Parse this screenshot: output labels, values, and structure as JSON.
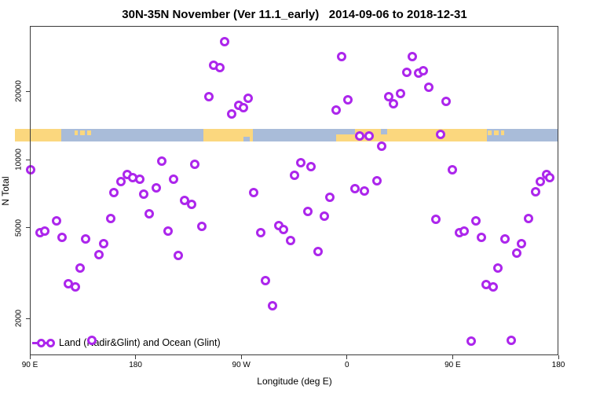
{
  "title": "30N-35N November (Ver 11.1_early)   2014-09-06 to 2018-12-31",
  "colors": {
    "point": "#AC26EC",
    "land": "#FBD77E",
    "ocean": "#A9BCD9",
    "axis": "#3a3a3a"
  },
  "legend": {
    "label": "Land (Nadir&Glint) and Ocean (Glint)",
    "position": "bottom-left"
  },
  "chart_data": {
    "type": "scatter",
    "title": "30N-35N November (Ver 11.1_early)   2014-09-06 to 2018-12-31",
    "xlabel": "Longitude (deg E)",
    "ylabel": "N Total",
    "x_axis": {
      "range_deg_east": [
        90,
        540
      ],
      "ticks": [
        {
          "label": "90 E",
          "lon": 90
        },
        {
          "label": "180",
          "lon": 180
        },
        {
          "label": "90 W",
          "lon": 270
        },
        {
          "label": "0",
          "lon": 360
        },
        {
          "label": "90 E",
          "lon": 450
        },
        {
          "label": "180",
          "lon": 540
        }
      ]
    },
    "y_axis": {
      "scale": "log",
      "range": [
        1375,
        38700
      ],
      "ticks": [
        {
          "label": "2000",
          "value": 2000
        },
        {
          "label": "5000",
          "value": 5000
        },
        {
          "label": "10000",
          "value": 10000
        },
        {
          "label": "20000",
          "value": 20000
        }
      ]
    },
    "grid": false,
    "legend_entries": [
      "Land (Nadir&Glint) and Ocean (Glint)"
    ],
    "points_lon_n": [
      [
        91,
        9000
      ],
      [
        203,
        9840
      ],
      [
        231,
        9460
      ],
      [
        173,
        8530
      ],
      [
        178,
        8260
      ],
      [
        184,
        8130
      ],
      [
        168,
        7940
      ],
      [
        198,
        7500
      ],
      [
        213,
        8130
      ],
      [
        256,
        32800
      ],
      [
        356,
        28200
      ],
      [
        247,
        26000
      ],
      [
        252,
        25200
      ],
      [
        243,
        18900
      ],
      [
        276,
        18500
      ],
      [
        361,
        18300
      ],
      [
        268,
        17200
      ],
      [
        272,
        16900
      ],
      [
        351,
        16400
      ],
      [
        262,
        15800
      ],
      [
        371,
        12600
      ],
      [
        379,
        12600
      ],
      [
        390,
        11400
      ],
      [
        321,
        9610
      ],
      [
        330,
        9240
      ],
      [
        316,
        8460
      ],
      [
        386,
        8060
      ],
      [
        367,
        7390
      ],
      [
        375,
        7270
      ],
      [
        281,
        7130
      ],
      [
        346,
        6770
      ],
      [
        416,
        28200
      ],
      [
        411,
        24200
      ],
      [
        421,
        24000
      ],
      [
        425,
        24600
      ],
      [
        430,
        20800
      ],
      [
        396,
        18900
      ],
      [
        406,
        19500
      ],
      [
        400,
        17500
      ],
      [
        445,
        17900
      ],
      [
        440,
        12900
      ],
      [
        450,
        8950
      ],
      [
        530,
        8530
      ],
      [
        533,
        8320
      ],
      [
        525,
        7940
      ],
      [
        521,
        7210
      ],
      [
        162,
        7100
      ],
      [
        187,
        7040
      ],
      [
        222,
        6560
      ],
      [
        228,
        6300
      ],
      [
        192,
        5730
      ],
      [
        113,
        5370
      ],
      [
        159,
        5500
      ],
      [
        99,
        4730
      ],
      [
        103,
        4810
      ],
      [
        118,
        4540
      ],
      [
        208,
        4810
      ],
      [
        138,
        4440
      ],
      [
        153,
        4260
      ],
      [
        149,
        3810
      ],
      [
        217,
        3780
      ],
      [
        133,
        3330
      ],
      [
        123,
        2820
      ],
      [
        129,
        2750
      ],
      [
        143,
        1600
      ],
      [
        327,
        5910
      ],
      [
        341,
        5590
      ],
      [
        302,
        5120
      ],
      [
        306,
        4920
      ],
      [
        237,
        5080
      ],
      [
        287,
        4730
      ],
      [
        312,
        4370
      ],
      [
        336,
        3910
      ],
      [
        291,
        2910
      ],
      [
        297,
        2270
      ],
      [
        436,
        5420
      ],
      [
        470,
        5370
      ],
      [
        515,
        5500
      ],
      [
        456,
        4730
      ],
      [
        460,
        4840
      ],
      [
        475,
        4510
      ],
      [
        495,
        4440
      ],
      [
        509,
        4230
      ],
      [
        505,
        3850
      ],
      [
        489,
        3330
      ],
      [
        479,
        2800
      ],
      [
        485,
        2750
      ],
      [
        466,
        1580
      ],
      [
        500,
        1600
      ]
    ],
    "map_strip": {
      "description": "world land/ocean band at 30N-35N drawn across plot at N ~12700",
      "land_segments_lon": [
        [
          77,
          117
        ],
        [
          238,
          280
        ],
        [
          351,
          479
        ]
      ],
      "island_segments_lon": [
        [
          128,
          131
        ],
        [
          133,
          137
        ],
        [
          139,
          142
        ],
        [
          480,
          483
        ],
        [
          485,
          489
        ],
        [
          491,
          494
        ]
      ],
      "sea_notch_top_lon": [
        [
          351,
          367
        ],
        [
          389,
          394
        ]
      ],
      "sea_notch_bottom_lon": [
        [
          272,
          277
        ]
      ]
    }
  }
}
